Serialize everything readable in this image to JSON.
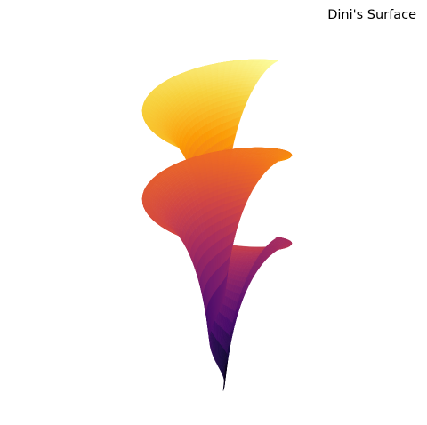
{
  "chart_data": {
    "type": "surface3d",
    "title": "Dini's Surface",
    "surface": "dini",
    "parameters": {
      "a": 1.0,
      "b": 0.2
    },
    "u_range": [
      0,
      12.566
    ],
    "v_range": [
      0.1,
      2.0
    ],
    "colormap": "inferno",
    "grid": false,
    "axes_visible": false
  },
  "colors": {
    "background": "#ffffff",
    "title": "#000000",
    "inferno": [
      "#000004",
      "#1b0c41",
      "#4a0c6b",
      "#781c6d",
      "#a52c60",
      "#cf4446",
      "#ed6925",
      "#fb9b06",
      "#f7d13d",
      "#fcffa4"
    ]
  }
}
